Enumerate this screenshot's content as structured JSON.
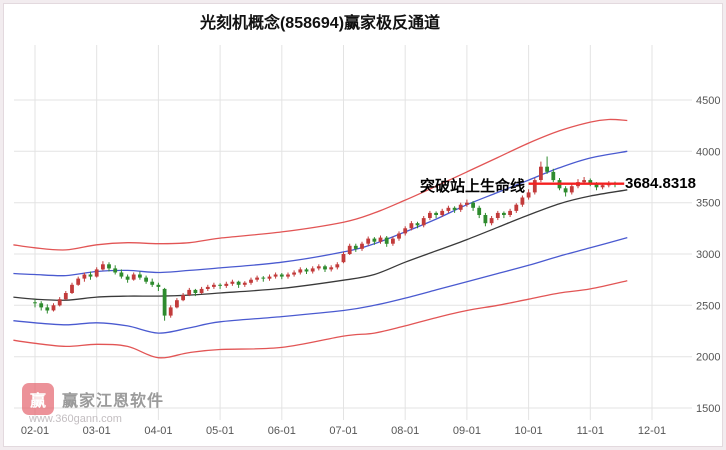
{
  "window": {
    "title": "光刻机概念(858694)赢家极反通道"
  },
  "annotation": {
    "breakout_text": "突破站上生命线",
    "price_label": "3684.8318"
  },
  "watermark": {
    "brand": "赢家江恩软件",
    "url": "www.360gann.com",
    "logo_text": "赢"
  },
  "colors": {
    "up": "#c23b3b",
    "down": "#2e8b2e",
    "channel_red": "#e25555",
    "channel_blue": "#4a5ad0",
    "midline": "#3a3a3a",
    "lifeline": "#f52020",
    "grid": "#e3e3e3",
    "axis_text": "#555555",
    "background": "#f1ecef",
    "panel": "#ffffff"
  },
  "chart_data": {
    "type": "candlestick",
    "title": "光刻机概念(858694)赢家极反通道",
    "x_ticks": [
      "02-01",
      "03-01",
      "04-01",
      "05-01",
      "06-01",
      "07-01",
      "08-01",
      "09-01",
      "10-01",
      "11-01",
      "12-01"
    ],
    "y_ticks": [
      1500,
      2000,
      2500,
      3000,
      3500,
      4000,
      4500
    ],
    "ylim": [
      1380,
      5040
    ],
    "grid": true,
    "candles_per_month": 10,
    "ohlc": [
      [
        2530,
        2560,
        2480,
        2520
      ],
      [
        2520,
        2540,
        2450,
        2480
      ],
      [
        2480,
        2510,
        2420,
        2450
      ],
      [
        2450,
        2520,
        2440,
        2500
      ],
      [
        2500,
        2580,
        2490,
        2560
      ],
      [
        2560,
        2640,
        2550,
        2620
      ],
      [
        2620,
        2720,
        2610,
        2700
      ],
      [
        2700,
        2780,
        2690,
        2760
      ],
      [
        2760,
        2820,
        2730,
        2800
      ],
      [
        2800,
        2830,
        2750,
        2780
      ],
      [
        2780,
        2870,
        2770,
        2850
      ],
      [
        2850,
        2930,
        2840,
        2900
      ],
      [
        2900,
        2920,
        2830,
        2860
      ],
      [
        2860,
        2890,
        2800,
        2820
      ],
      [
        2820,
        2850,
        2760,
        2780
      ],
      [
        2780,
        2800,
        2720,
        2750
      ],
      [
        2750,
        2820,
        2740,
        2800
      ],
      [
        2800,
        2830,
        2750,
        2770
      ],
      [
        2770,
        2790,
        2710,
        2730
      ],
      [
        2730,
        2760,
        2680,
        2700
      ],
      [
        2700,
        2720,
        2640,
        2680
      ],
      [
        2660,
        2670,
        2350,
        2400
      ],
      [
        2400,
        2500,
        2380,
        2480
      ],
      [
        2480,
        2570,
        2470,
        2550
      ],
      [
        2550,
        2620,
        2540,
        2600
      ],
      [
        2600,
        2670,
        2590,
        2650
      ],
      [
        2650,
        2660,
        2590,
        2620
      ],
      [
        2620,
        2680,
        2610,
        2660
      ],
      [
        2660,
        2700,
        2640,
        2680
      ],
      [
        2680,
        2720,
        2660,
        2700
      ],
      [
        2700,
        2715,
        2660,
        2690
      ],
      [
        2690,
        2730,
        2670,
        2710
      ],
      [
        2710,
        2750,
        2690,
        2730
      ],
      [
        2730,
        2740,
        2670,
        2700
      ],
      [
        2700,
        2735,
        2680,
        2720
      ],
      [
        2720,
        2770,
        2700,
        2750
      ],
      [
        2750,
        2790,
        2730,
        2770
      ],
      [
        2770,
        2785,
        2730,
        2760
      ],
      [
        2760,
        2800,
        2740,
        2780
      ],
      [
        2780,
        2820,
        2760,
        2800
      ],
      [
        2800,
        2815,
        2755,
        2780
      ],
      [
        2780,
        2820,
        2760,
        2800
      ],
      [
        2800,
        2840,
        2780,
        2820
      ],
      [
        2820,
        2870,
        2800,
        2850
      ],
      [
        2850,
        2865,
        2805,
        2830
      ],
      [
        2830,
        2880,
        2810,
        2860
      ],
      [
        2860,
        2900,
        2840,
        2880
      ],
      [
        2880,
        2895,
        2825,
        2850
      ],
      [
        2850,
        2890,
        2830,
        2870
      ],
      [
        2870,
        2920,
        2850,
        2900
      ],
      [
        2920,
        3020,
        2910,
        3000
      ],
      [
        3000,
        3100,
        2990,
        3080
      ],
      [
        3080,
        3100,
        3020,
        3050
      ],
      [
        3050,
        3120,
        3030,
        3100
      ],
      [
        3100,
        3170,
        3080,
        3150
      ],
      [
        3150,
        3165,
        3090,
        3120
      ],
      [
        3120,
        3180,
        3100,
        3160
      ],
      [
        3160,
        3175,
        3070,
        3100
      ],
      [
        3100,
        3170,
        3080,
        3150
      ],
      [
        3150,
        3220,
        3130,
        3200
      ],
      [
        3200,
        3270,
        3180,
        3250
      ],
      [
        3250,
        3320,
        3230,
        3300
      ],
      [
        3300,
        3315,
        3250,
        3280
      ],
      [
        3280,
        3370,
        3260,
        3350
      ],
      [
        3350,
        3420,
        3330,
        3400
      ],
      [
        3400,
        3415,
        3350,
        3380
      ],
      [
        3380,
        3440,
        3360,
        3420
      ],
      [
        3420,
        3470,
        3400,
        3450
      ],
      [
        3450,
        3465,
        3400,
        3430
      ],
      [
        3430,
        3500,
        3410,
        3480
      ],
      [
        3480,
        3530,
        3460,
        3500
      ],
      [
        3500,
        3515,
        3420,
        3450
      ],
      [
        3450,
        3470,
        3350,
        3380
      ],
      [
        3380,
        3400,
        3270,
        3300
      ],
      [
        3300,
        3370,
        3280,
        3350
      ],
      [
        3350,
        3420,
        3330,
        3400
      ],
      [
        3400,
        3415,
        3350,
        3380
      ],
      [
        3380,
        3440,
        3360,
        3420
      ],
      [
        3420,
        3495,
        3400,
        3480
      ],
      [
        3480,
        3570,
        3460,
        3550
      ],
      [
        3550,
        3630,
        3530,
        3600
      ],
      [
        3600,
        3740,
        3580,
        3720
      ],
      [
        3720,
        3900,
        3700,
        3850
      ],
      [
        3850,
        3950,
        3780,
        3800
      ],
      [
        3800,
        3830,
        3700,
        3720
      ],
      [
        3720,
        3740,
        3620,
        3640
      ],
      [
        3640,
        3660,
        3560,
        3600
      ],
      [
        3600,
        3680,
        3580,
        3660
      ],
      [
        3660,
        3730,
        3640,
        3700
      ],
      [
        3700,
        3750,
        3680,
        3720
      ],
      [
        3720,
        3735,
        3660,
        3680
      ],
      [
        3680,
        3700,
        3620,
        3650
      ],
      [
        3650,
        3690,
        3630,
        3670
      ],
      [
        3670,
        3710,
        3650,
        3690
      ],
      [
        3690,
        3705,
        3650,
        3684.83
      ]
    ],
    "lifeline": {
      "price": 3684.8318,
      "start_month": 8.0,
      "end_month": 9.55,
      "label": "3684.8318",
      "text": "突破站上生命线"
    },
    "channels": [
      {
        "name": "upper-red",
        "color_key": "channel_red",
        "points": [
          [
            -0.35,
            3090
          ],
          [
            0,
            3060
          ],
          [
            0.5,
            3040
          ],
          [
            1,
            3090
          ],
          [
            1.5,
            3110
          ],
          [
            2,
            3100
          ],
          [
            2.5,
            3110
          ],
          [
            3,
            3155
          ],
          [
            4,
            3215
          ],
          [
            5,
            3310
          ],
          [
            5.5,
            3400
          ],
          [
            6,
            3525
          ],
          [
            6.5,
            3660
          ],
          [
            7,
            3800
          ],
          [
            7.5,
            3940
          ],
          [
            8,
            4080
          ],
          [
            8.5,
            4200
          ],
          [
            9,
            4285
          ],
          [
            9.3,
            4310
          ],
          [
            9.6,
            4300
          ]
        ]
      },
      {
        "name": "upper-blue",
        "color_key": "channel_blue",
        "points": [
          [
            -0.35,
            2810
          ],
          [
            0,
            2800
          ],
          [
            0.5,
            2790
          ],
          [
            1,
            2830
          ],
          [
            1.5,
            2840
          ],
          [
            2,
            2820
          ],
          [
            2.5,
            2840
          ],
          [
            3,
            2865
          ],
          [
            4,
            2920
          ],
          [
            5,
            3020
          ],
          [
            5.5,
            3100
          ],
          [
            6,
            3215
          ],
          [
            6.5,
            3340
          ],
          [
            7,
            3480
          ],
          [
            7.5,
            3600
          ],
          [
            8,
            3720
          ],
          [
            8.5,
            3840
          ],
          [
            9,
            3935
          ],
          [
            9.6,
            4000
          ]
        ]
      },
      {
        "name": "midline",
        "color_key": "midline",
        "points": [
          [
            -0.35,
            2580
          ],
          [
            0,
            2560
          ],
          [
            0.5,
            2550
          ],
          [
            1,
            2580
          ],
          [
            1.5,
            2590
          ],
          [
            2,
            2590
          ],
          [
            2.5,
            2600
          ],
          [
            3,
            2620
          ],
          [
            4,
            2665
          ],
          [
            5,
            2745
          ],
          [
            5.5,
            2800
          ],
          [
            6,
            2920
          ],
          [
            6.5,
            3030
          ],
          [
            7,
            3140
          ],
          [
            7.5,
            3260
          ],
          [
            8,
            3380
          ],
          [
            8.5,
            3490
          ],
          [
            9,
            3565
          ],
          [
            9.6,
            3625
          ]
        ]
      },
      {
        "name": "lower-blue",
        "color_key": "channel_blue",
        "points": [
          [
            -0.35,
            2350
          ],
          [
            0,
            2330
          ],
          [
            0.5,
            2310
          ],
          [
            1,
            2330
          ],
          [
            1.5,
            2300
          ],
          [
            2,
            2230
          ],
          [
            2.5,
            2280
          ],
          [
            3,
            2340
          ],
          [
            4,
            2390
          ],
          [
            5,
            2450
          ],
          [
            5.5,
            2500
          ],
          [
            6,
            2570
          ],
          [
            6.5,
            2650
          ],
          [
            7,
            2730
          ],
          [
            7.5,
            2810
          ],
          [
            8,
            2890
          ],
          [
            8.5,
            2980
          ],
          [
            9,
            3060
          ],
          [
            9.6,
            3160
          ]
        ]
      },
      {
        "name": "lower-red",
        "color_key": "channel_red",
        "points": [
          [
            -0.35,
            2160
          ],
          [
            0,
            2130
          ],
          [
            0.5,
            2100
          ],
          [
            1,
            2120
          ],
          [
            1.5,
            2100
          ],
          [
            2,
            1990
          ],
          [
            2.5,
            2040
          ],
          [
            3,
            2070
          ],
          [
            4,
            2090
          ],
          [
            5,
            2200
          ],
          [
            5.5,
            2230
          ],
          [
            6,
            2300
          ],
          [
            6.5,
            2380
          ],
          [
            7,
            2450
          ],
          [
            7.5,
            2500
          ],
          [
            8,
            2560
          ],
          [
            8.5,
            2620
          ],
          [
            9,
            2660
          ],
          [
            9.6,
            2740
          ]
        ]
      }
    ]
  }
}
